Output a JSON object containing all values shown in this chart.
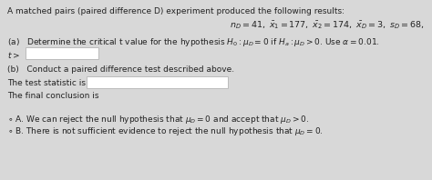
{
  "bg_color": "#d8d8d8",
  "title_text": "A matched pairs (paired difference D) experiment produced the following results:",
  "formula_line": "$n_D = 41,\\ \\bar{x}_1 = 177,\\ \\bar{x}_2 = 174,\\ \\bar{x}_D = 3,\\ s_D = 68,$",
  "part_a": "(a)   Determine the critical t value for the hypothesis $H_0: \\mu_D = 0$ if $H_a: \\mu_D > 0$. Use $\\alpha = 0.01$.",
  "t_label": "$t >$",
  "part_b": "(b)   Conduct a paired difference test described above.",
  "stat_label": "The test statistic is",
  "conclusion_label": "The final conclusion is",
  "option_a_pre": "A. We can reject the null hypothesis that ",
  "option_a_mid": "$\\mu_D = 0$",
  "option_a_post": " and accept that ",
  "option_a_end": "$\\mu_D > 0$.",
  "option_b_pre": "B. There is not sufficient evidence to reject the null hypothesis that ",
  "option_b_end": "$\\mu_D = 0$.",
  "text_color": "#222222",
  "box_color": "#ffffff",
  "box_border": "#bbbbbb",
  "font_size": 6.5,
  "font_size_formula": 6.8
}
